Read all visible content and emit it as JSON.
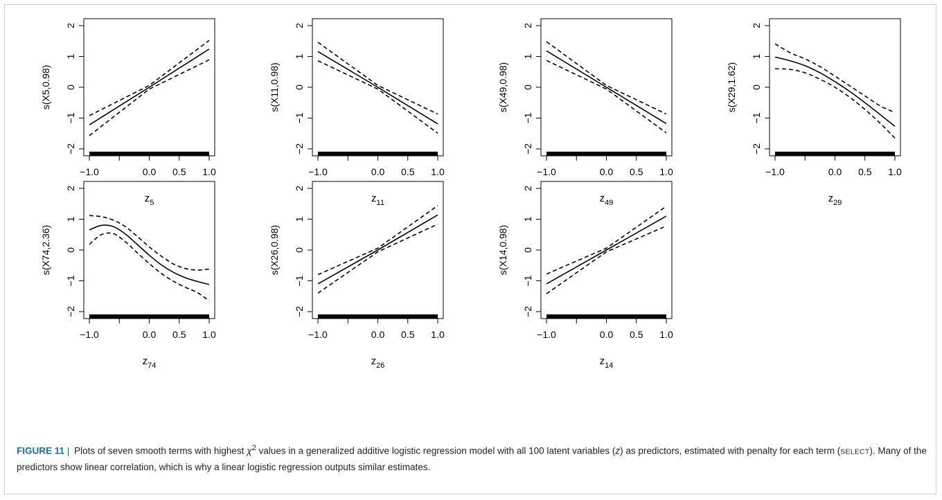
{
  "figure": {
    "label": "FIGURE 11",
    "separator": "|",
    "caption_part1": "Plots of seven smooth terms with highest",
    "chi_symbol": "χ",
    "chi_exponent": "2",
    "caption_part2": "values in a generalized additive logistic regression model with all 100 latent variables (",
    "caption_z": "z",
    "caption_part3": ") as predictors, estimated with penalty for each term (",
    "caption_select": "SELECT",
    "caption_part4": "). Many of the predictors show linear correlation, which is why a linear logistic regression outputs similar estimates."
  },
  "colors": {
    "frame": "#c9d1d8",
    "label_blue": "#1a6fa3",
    "line": "#000000"
  },
  "chart_data": [
    {
      "type": "line",
      "ylabel": "s(X5,0.98)",
      "xlabel_base": "z",
      "xlabel_sub": "5",
      "xlim": [
        -1,
        1
      ],
      "ylim": [
        -2,
        2
      ],
      "xticks": [
        "-1.0",
        "0.0",
        "0.5",
        "1.0"
      ],
      "yticks": [
        "-2",
        "-1",
        "0",
        "1",
        "2"
      ],
      "rug": true,
      "series": [
        {
          "style": "solid",
          "x": [
            -1,
            0,
            1
          ],
          "y": [
            -1.22,
            0,
            1.24
          ]
        },
        {
          "style": "dashed",
          "x": [
            -1,
            0,
            1
          ],
          "y": [
            -0.92,
            0.06,
            1.52
          ]
        },
        {
          "style": "dashed",
          "x": [
            -1,
            0,
            1
          ],
          "y": [
            -1.57,
            -0.06,
            0.89
          ]
        }
      ]
    },
    {
      "type": "line",
      "ylabel": "s(X11,0.98)",
      "xlabel_base": "z",
      "xlabel_sub": "11",
      "xlim": [
        -1,
        1
      ],
      "ylim": [
        -2,
        2
      ],
      "xticks": [
        "-1.0",
        "0.0",
        "0.5",
        "1.0"
      ],
      "yticks": [
        "-2",
        "-1",
        "0",
        "1",
        "2"
      ],
      "rug": true,
      "series": [
        {
          "style": "solid",
          "x": [
            -1,
            0,
            1
          ],
          "y": [
            1.16,
            0,
            -1.19
          ]
        },
        {
          "style": "dashed",
          "x": [
            -1,
            0,
            1
          ],
          "y": [
            1.46,
            0.06,
            -0.87
          ]
        },
        {
          "style": "dashed",
          "x": [
            -1,
            0,
            1
          ],
          "y": [
            0.86,
            -0.06,
            -1.49
          ]
        }
      ]
    },
    {
      "type": "line",
      "ylabel": "s(X49,0.98)",
      "xlabel_base": "z",
      "xlabel_sub": "49",
      "xlim": [
        -1,
        1
      ],
      "ylim": [
        -2,
        2
      ],
      "xticks": [
        "-1.0",
        "0.0",
        "0.5",
        "1.0"
      ],
      "yticks": [
        "-2",
        "-1",
        "0",
        "1",
        "2"
      ],
      "rug": true,
      "series": [
        {
          "style": "solid",
          "x": [
            -1,
            0,
            1
          ],
          "y": [
            1.18,
            0,
            -1.18
          ]
        },
        {
          "style": "dashed",
          "x": [
            -1,
            0,
            1
          ],
          "y": [
            1.48,
            0.06,
            -0.87
          ]
        },
        {
          "style": "dashed",
          "x": [
            -1,
            0,
            1
          ],
          "y": [
            0.87,
            -0.06,
            -1.48
          ]
        }
      ]
    },
    {
      "type": "line",
      "ylabel": "s(X29,1.62)",
      "xlabel_base": "z",
      "xlabel_sub": "29",
      "xlim": [
        -1,
        1
      ],
      "ylim": [
        -2,
        2
      ],
      "xticks": [
        "-1.0",
        "0.0",
        "0.5",
        "1.0"
      ],
      "yticks": [
        "-2",
        "-1",
        "0",
        "1",
        "2"
      ],
      "rug": true,
      "series": [
        {
          "style": "solid",
          "x": [
            -1,
            -0.75,
            -0.5,
            -0.25,
            0,
            0.25,
            0.5,
            0.75,
            1
          ],
          "y": [
            0.98,
            0.86,
            0.7,
            0.47,
            0.18,
            -0.14,
            -0.5,
            -0.88,
            -1.27
          ]
        },
        {
          "style": "dashed",
          "x": [
            -1,
            -0.75,
            -0.5,
            -0.25,
            0,
            0.25,
            0.5,
            0.75,
            1
          ],
          "y": [
            1.41,
            1.12,
            0.92,
            0.67,
            0.36,
            0.04,
            -0.28,
            -0.6,
            -0.82
          ]
        },
        {
          "style": "dashed",
          "x": [
            -1,
            -0.75,
            -0.5,
            -0.25,
            0,
            0.25,
            0.5,
            0.75,
            1
          ],
          "y": [
            0.6,
            0.58,
            0.47,
            0.26,
            0.0,
            -0.33,
            -0.72,
            -1.16,
            -1.65
          ]
        }
      ]
    },
    {
      "type": "line",
      "ylabel": "s(X74,2.36)",
      "xlabel_base": "z",
      "xlabel_sub": "74",
      "xlim": [
        -1,
        1
      ],
      "ylim": [
        -2,
        2
      ],
      "xticks": [
        "-1.0",
        "0.0",
        "0.5",
        "1.0"
      ],
      "yticks": [
        "-2",
        "-1",
        "0",
        "1",
        "2"
      ],
      "rug": true,
      "series": [
        {
          "style": "solid",
          "x": [
            -1,
            -0.8,
            -0.6,
            -0.4,
            -0.2,
            0,
            0.2,
            0.4,
            0.6,
            0.8,
            1
          ],
          "y": [
            0.65,
            0.8,
            0.76,
            0.52,
            0.18,
            -0.17,
            -0.48,
            -0.72,
            -0.9,
            -1.02,
            -1.12
          ]
        },
        {
          "style": "dashed",
          "x": [
            -1,
            -0.8,
            -0.6,
            -0.4,
            -0.2,
            0,
            0.2,
            0.4,
            0.6,
            0.8,
            1
          ],
          "y": [
            1.12,
            1.08,
            0.97,
            0.76,
            0.44,
            0.1,
            -0.2,
            -0.45,
            -0.6,
            -0.65,
            -0.62
          ]
        },
        {
          "style": "dashed",
          "x": [
            -1,
            -0.8,
            -0.6,
            -0.4,
            -0.2,
            0,
            0.2,
            0.4,
            0.6,
            0.8,
            1
          ],
          "y": [
            0.18,
            0.5,
            0.53,
            0.27,
            -0.09,
            -0.44,
            -0.76,
            -1.01,
            -1.21,
            -1.38,
            -1.65
          ]
        }
      ]
    },
    {
      "type": "line",
      "ylabel": "s(X26,0.98)",
      "xlabel_base": "z",
      "xlabel_sub": "26",
      "xlim": [
        -1,
        1
      ],
      "ylim": [
        -2,
        2
      ],
      "xticks": [
        "-1.0",
        "0.0",
        "0.5",
        "1.0"
      ],
      "yticks": [
        "-2",
        "-1",
        "0",
        "1",
        "2"
      ],
      "rug": true,
      "series": [
        {
          "style": "solid",
          "x": [
            -1,
            0,
            1
          ],
          "y": [
            -1.1,
            0,
            1.14
          ]
        },
        {
          "style": "dashed",
          "x": [
            -1,
            0,
            1
          ],
          "y": [
            -0.8,
            0.06,
            1.44
          ]
        },
        {
          "style": "dashed",
          "x": [
            -1,
            0,
            1
          ],
          "y": [
            -1.4,
            -0.06,
            0.84
          ]
        }
      ]
    },
    {
      "type": "line",
      "ylabel": "s(X14,0.98)",
      "xlabel_base": "z",
      "xlabel_sub": "14",
      "xlim": [
        -1,
        1
      ],
      "ylim": [
        -2,
        2
      ],
      "xticks": [
        "-1.0",
        "0.0",
        "0.5",
        "1.0"
      ],
      "yticks": [
        "-2",
        "-1",
        "0",
        "1",
        "2"
      ],
      "rug": true,
      "series": [
        {
          "style": "solid",
          "x": [
            -1,
            0,
            1
          ],
          "y": [
            -1.1,
            0,
            1.1
          ]
        },
        {
          "style": "dashed",
          "x": [
            -1,
            0,
            1
          ],
          "y": [
            -0.78,
            0.06,
            1.42
          ]
        },
        {
          "style": "dashed",
          "x": [
            -1,
            0,
            1
          ],
          "y": [
            -1.42,
            -0.06,
            0.78
          ]
        }
      ]
    }
  ]
}
